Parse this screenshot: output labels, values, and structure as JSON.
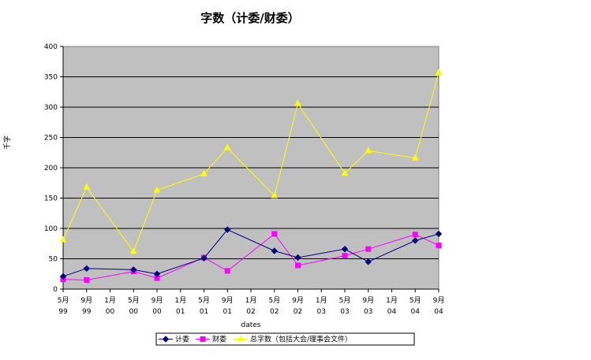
{
  "chart_data": {
    "type": "line",
    "title": "字数（计委/财委）",
    "xlabel": "dates",
    "ylabel": "千字",
    "ylim": [
      0,
      400
    ],
    "yticks": [
      0,
      50,
      100,
      150,
      200,
      250,
      300,
      350,
      400
    ],
    "grid": true,
    "legend_position": "bottom",
    "background_color": "#c0c0c0",
    "categories": [
      [
        "5月",
        "99"
      ],
      [
        "9月",
        "99"
      ],
      [
        "1月",
        "00"
      ],
      [
        "5月",
        "00"
      ],
      [
        "9月",
        "00"
      ],
      [
        "1月",
        "01"
      ],
      [
        "5月",
        "01"
      ],
      [
        "9月",
        "01"
      ],
      [
        "1月",
        "02"
      ],
      [
        "5月",
        "02"
      ],
      [
        "9月",
        "02"
      ],
      [
        "1月",
        "03"
      ],
      [
        "5月",
        "03"
      ],
      [
        "9月",
        "03"
      ],
      [
        "1月",
        "04"
      ],
      [
        "5月",
        "04"
      ],
      [
        "9月",
        "04"
      ]
    ],
    "series": [
      {
        "name": "计委",
        "color": "#000080",
        "marker": "diamond",
        "points": [
          [
            0,
            21
          ],
          [
            1,
            34
          ],
          [
            3,
            32
          ],
          [
            4,
            25
          ],
          [
            6,
            51
          ],
          [
            7,
            98
          ],
          [
            9,
            63
          ],
          [
            10,
            52
          ],
          [
            12,
            66
          ],
          [
            13,
            45
          ],
          [
            15,
            80
          ],
          [
            16,
            91
          ]
        ]
      },
      {
        "name": "财委",
        "color": "#ff00ff",
        "marker": "square",
        "points": [
          [
            0,
            16
          ],
          [
            1,
            15
          ],
          [
            3,
            29
          ],
          [
            4,
            18
          ],
          [
            6,
            52
          ],
          [
            7,
            30
          ],
          [
            9,
            91
          ],
          [
            10,
            39
          ],
          [
            12,
            55
          ],
          [
            13,
            66
          ],
          [
            15,
            90
          ],
          [
            16,
            72
          ]
        ]
      },
      {
        "name": "总字数（包括大会/理事会文件）",
        "color": "#ffff00",
        "marker": "triangle",
        "points": [
          [
            0,
            81
          ],
          [
            1,
            168
          ],
          [
            3,
            62
          ],
          [
            4,
            163
          ],
          [
            6,
            190
          ],
          [
            7,
            233
          ],
          [
            9,
            154
          ],
          [
            10,
            306
          ],
          [
            12,
            191
          ],
          [
            13,
            228
          ],
          [
            15,
            216
          ],
          [
            16,
            357
          ]
        ]
      }
    ]
  }
}
